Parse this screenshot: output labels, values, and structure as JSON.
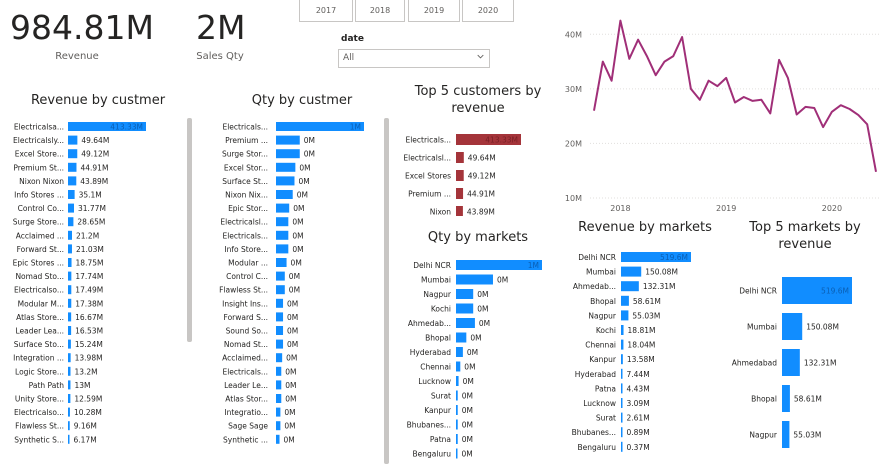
{
  "kpis": {
    "revenue": {
      "value": "984.81M",
      "label": "Revenue"
    },
    "sales_qty": {
      "value": "2M",
      "label": "Sales Qty"
    }
  },
  "year_slicer": {
    "years": [
      "2017",
      "2018",
      "2019",
      "2020"
    ]
  },
  "date_slicer": {
    "label": "date",
    "selected": "All"
  },
  "colors": {
    "blue": "#118dff",
    "red": "#a4343a",
    "purple": "#a02f78",
    "grid": "#e1dfdd",
    "text": "#252423",
    "muted": "#605e5c"
  },
  "chart_data": [
    {
      "id": "revenue_by_customer",
      "type": "bar",
      "title": "Revenue by custmer",
      "categories": [
        "Electricalsa...",
        "Electricalsly...",
        "Excel Store...",
        "Premium St...",
        "Nixon Nixon",
        "Info Stores ...",
        "Control Co...",
        "Surge Store...",
        "Acclaimed ...",
        "Forward St...",
        "Epic Stores ...",
        "Nomad Sto...",
        "Electricalso...",
        "Modular M...",
        "Atlas Store...",
        "Leader Lea...",
        "Surface Sto...",
        "Integration ...",
        "Logic Store...",
        "Path Path",
        "Unity Store...",
        "Electricalso...",
        "Flawless St...",
        "Synthetic S..."
      ],
      "values": [
        413.33,
        49.64,
        49.12,
        44.91,
        43.89,
        35.1,
        31.77,
        28.65,
        21.2,
        21.03,
        18.75,
        17.74,
        17.49,
        17.38,
        16.67,
        16.53,
        15.24,
        13.98,
        13.2,
        13,
        12.59,
        10.28,
        9.16,
        6.17
      ],
      "labels": [
        "413.33M",
        "49.64M",
        "49.12M",
        "44.91M",
        "43.89M",
        "35.1M",
        "31.77M",
        "28.65M",
        "21.2M",
        "21.03M",
        "18.75M",
        "17.74M",
        "17.49M",
        "17.38M",
        "16.67M",
        "16.53M",
        "15.24M",
        "13.98M",
        "13.2M",
        "13M",
        "12.59M",
        "10.28M",
        "9.16M",
        "6.17M"
      ]
    },
    {
      "id": "qty_by_customer",
      "type": "bar",
      "title": "Qty by custmer",
      "categories": [
        "Electricals...",
        "Premium ...",
        "Surge Stor...",
        "Excel Stor...",
        "Surface St...",
        "Nixon Nix...",
        "Epic Stor...",
        "Electricalsl...",
        "Electricals...",
        "Info Store...",
        "Modular ...",
        "Control C...",
        "Flawless St...",
        "Insight Ins...",
        "Forward S...",
        "Sound So...",
        "Nomad St...",
        "Acclaimed...",
        "Electricals...",
        "Leader Le...",
        "Atlas Stor...",
        "Integratio...",
        "Sage Sage",
        "Synthetic ..."
      ],
      "values": [
        1,
        0.27,
        0.27,
        0.22,
        0.21,
        0.19,
        0.15,
        0.14,
        0.14,
        0.14,
        0.12,
        0.1,
        0.1,
        0.08,
        0.08,
        0.08,
        0.08,
        0.07,
        0.06,
        0.06,
        0.06,
        0.05,
        0.05,
        0.04
      ],
      "labels": [
        "1M",
        "0M",
        "0M",
        "0M",
        "0M",
        "0M",
        "0M",
        "0M",
        "0M",
        "0M",
        "0M",
        "0M",
        "0M",
        "0M",
        "0M",
        "0M",
        "0M",
        "0M",
        "0M",
        "0M",
        "0M",
        "0M",
        "0M",
        "0M"
      ]
    },
    {
      "id": "top5_customers",
      "type": "bar",
      "title": "Top 5 customers by revenue",
      "categories": [
        "Electricals...",
        "Electricalsl...",
        "Excel Stores",
        "Premium ...",
        "Nixon"
      ],
      "values": [
        413.33,
        49.64,
        49.12,
        44.91,
        43.89
      ],
      "labels": [
        "413.33M",
        "49.64M",
        "49.12M",
        "44.91M",
        "43.89M"
      ]
    },
    {
      "id": "qty_by_markets",
      "type": "bar",
      "title": "Qty by markets",
      "categories": [
        "Delhi NCR",
        "Mumbai",
        "Nagpur",
        "Kochi",
        "Ahmedab...",
        "Bhopal",
        "Hyderabad",
        "Chennai",
        "Lucknow",
        "Surat",
        "Kanpur",
        "Bhubanes...",
        "Patna",
        "Bengaluru"
      ],
      "values": [
        1,
        0.43,
        0.2,
        0.2,
        0.22,
        0.12,
        0.08,
        0.05,
        0.03,
        0.02,
        0.02,
        0.02,
        0.02,
        0.01
      ],
      "labels": [
        "1M",
        "0M",
        "0M",
        "0M",
        "0M",
        "0M",
        "0M",
        "0M",
        "0M",
        "0M",
        "0M",
        "0M",
        "0M",
        "0M"
      ]
    },
    {
      "id": "revenue_by_markets",
      "type": "bar",
      "title": "Revenue by markets",
      "categories": [
        "Delhi NCR",
        "Mumbai",
        "Ahmedab...",
        "Bhopal",
        "Nagpur",
        "Kochi",
        "Chennai",
        "Kanpur",
        "Hyderabad",
        "Patna",
        "Lucknow",
        "Surat",
        "Bhubanes...",
        "Bengaluru"
      ],
      "values": [
        519.6,
        150.08,
        132.31,
        58.61,
        55.03,
        18.81,
        18.04,
        13.58,
        7.44,
        4.43,
        3.09,
        2.61,
        0.89,
        0.37
      ],
      "labels": [
        "519.6M",
        "150.08M",
        "132.31M",
        "58.61M",
        "55.03M",
        "18.81M",
        "18.04M",
        "13.58M",
        "7.44M",
        "4.43M",
        "3.09M",
        "2.61M",
        "0.89M",
        "0.37M"
      ]
    },
    {
      "id": "top5_markets",
      "type": "bar",
      "title": "Top 5 markets by revenue",
      "categories": [
        "Delhi NCR",
        "Mumbai",
        "Ahmedabad",
        "Bhopal",
        "Nagpur"
      ],
      "values": [
        519.6,
        150.08,
        132.31,
        58.61,
        55.03
      ],
      "labels": [
        "519.6M",
        "150.08M",
        "132.31M",
        "58.61M",
        "55.03M"
      ]
    },
    {
      "id": "revenue_trend",
      "type": "line",
      "title": "",
      "x_ticks": [
        "2018",
        "2019",
        "2020"
      ],
      "y_ticks": [
        "10M",
        "20M",
        "30M",
        "40M"
      ],
      "ylim": [
        10,
        45
      ],
      "x": [
        "2017-10",
        "2017-11",
        "2017-12",
        "2018-01",
        "2018-02",
        "2018-03",
        "2018-04",
        "2018-05",
        "2018-06",
        "2018-07",
        "2018-08",
        "2018-09",
        "2018-10",
        "2018-11",
        "2018-12",
        "2019-01",
        "2019-02",
        "2019-03",
        "2019-04",
        "2019-05",
        "2019-06",
        "2019-07",
        "2019-08",
        "2019-09",
        "2019-10",
        "2019-11",
        "2019-12",
        "2020-01",
        "2020-02",
        "2020-03",
        "2020-04",
        "2020-05",
        "2020-06"
      ],
      "values": [
        26,
        35,
        31.5,
        42.5,
        35.5,
        39,
        36,
        32.5,
        35,
        36,
        39.5,
        30,
        28,
        31.5,
        30.5,
        32,
        27.5,
        28.5,
        27.8,
        28,
        25.5,
        35.3,
        32,
        25.3,
        26.7,
        26.5,
        23,
        25.8,
        27,
        26.3,
        25.2,
        23.5,
        14.8
      ]
    }
  ]
}
